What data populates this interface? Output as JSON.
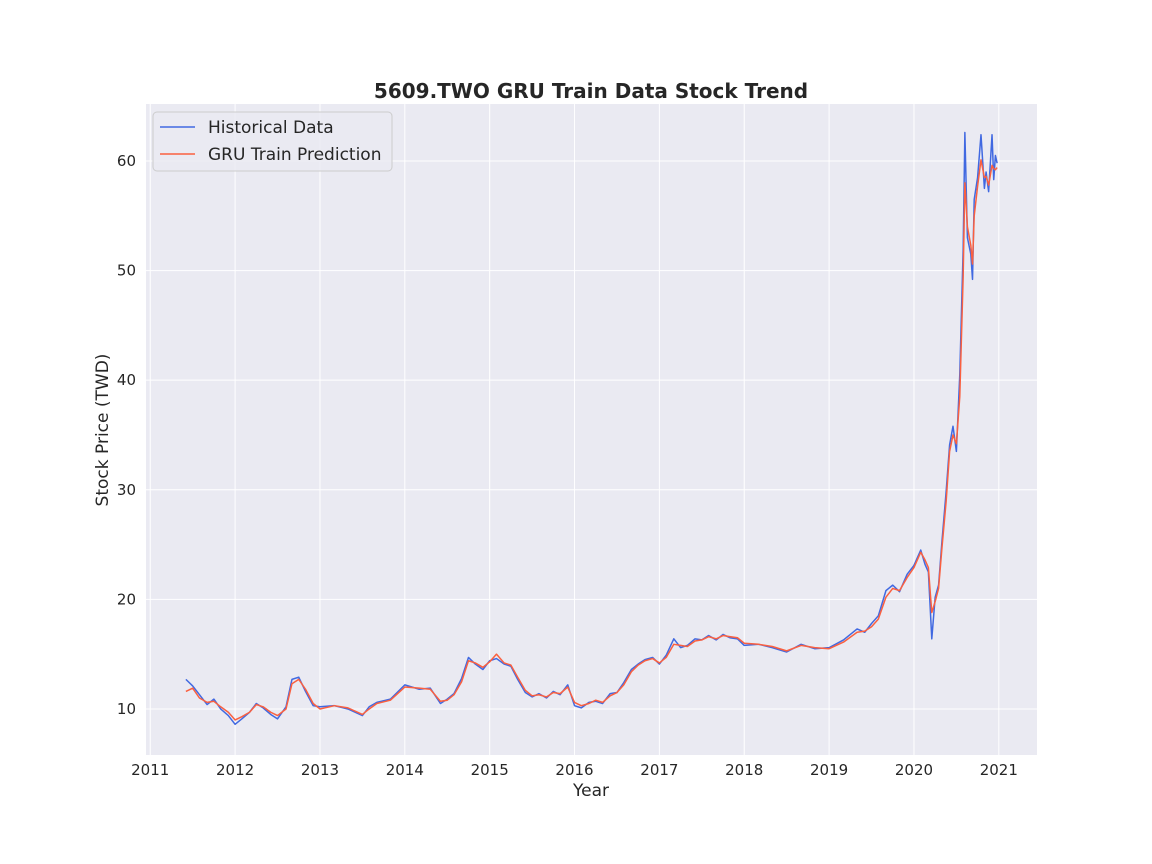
{
  "chart_data": {
    "type": "line",
    "title": "5609.TWO  GRU Train Data Stock Trend",
    "xlabel": "Year",
    "ylabel": "Stock Price (TWD)",
    "xlim": [
      2010.95,
      2021.45
    ],
    "ylim": [
      5.8,
      65.2
    ],
    "x_ticks": [
      2011,
      2012,
      2013,
      2014,
      2015,
      2016,
      2017,
      2018,
      2019,
      2020,
      2021
    ],
    "x_tick_labels": [
      "2011",
      "2012",
      "2013",
      "2014",
      "2015",
      "2016",
      "2017",
      "2018",
      "2019",
      "2020",
      "2021"
    ],
    "y_ticks": [
      10,
      20,
      30,
      40,
      50,
      60
    ],
    "y_tick_labels": [
      "10",
      "20",
      "30",
      "40",
      "50",
      "60"
    ],
    "grid": true,
    "legend_position": "top-left",
    "series": [
      {
        "name": "Historical Data",
        "color": "#4169e1",
        "x": [
          2011.42,
          2011.5,
          2011.58,
          2011.67,
          2011.75,
          2011.83,
          2011.92,
          2012.0,
          2012.08,
          2012.17,
          2012.25,
          2012.33,
          2012.42,
          2012.5,
          2012.6,
          2012.67,
          2012.75,
          2012.83,
          2012.92,
          2013.0,
          2013.17,
          2013.33,
          2013.5,
          2013.58,
          2013.67,
          2013.83,
          2014.0,
          2014.17,
          2014.3,
          2014.42,
          2014.5,
          2014.58,
          2014.67,
          2014.75,
          2014.83,
          2014.92,
          2015.0,
          2015.08,
          2015.17,
          2015.25,
          2015.33,
          2015.42,
          2015.5,
          2015.58,
          2015.67,
          2015.75,
          2015.83,
          2015.92,
          2016.0,
          2016.08,
          2016.17,
          2016.25,
          2016.33,
          2016.42,
          2016.5,
          2016.58,
          2016.67,
          2016.75,
          2016.83,
          2016.92,
          2017.0,
          2017.08,
          2017.17,
          2017.25,
          2017.33,
          2017.42,
          2017.5,
          2017.58,
          2017.67,
          2017.75,
          2017.83,
          2017.92,
          2018.0,
          2018.17,
          2018.33,
          2018.5,
          2018.67,
          2018.83,
          2019.0,
          2019.17,
          2019.33,
          2019.42,
          2019.5,
          2019.58,
          2019.67,
          2019.75,
          2019.83,
          2019.92,
          2020.0,
          2020.08,
          2020.13,
          2020.17,
          2020.21,
          2020.25,
          2020.29,
          2020.33,
          2020.38,
          2020.42,
          2020.46,
          2020.5,
          2020.54,
          2020.58,
          2020.6,
          2020.63,
          2020.67,
          2020.69,
          2020.71,
          2020.75,
          2020.79,
          2020.83,
          2020.85,
          2020.88,
          2020.92,
          2020.94,
          2020.96,
          2020.98
        ],
        "y": [
          12.7,
          12.1,
          11.3,
          10.4,
          10.9,
          10.0,
          9.4,
          8.6,
          9.1,
          9.7,
          10.5,
          10.1,
          9.5,
          9.1,
          10.2,
          12.7,
          12.9,
          11.6,
          10.3,
          10.2,
          10.3,
          10.0,
          9.4,
          10.2,
          10.6,
          10.9,
          12.2,
          11.8,
          11.9,
          10.5,
          10.9,
          11.4,
          12.8,
          14.7,
          14.1,
          13.6,
          14.4,
          14.6,
          14.1,
          13.9,
          12.7,
          11.5,
          11.1,
          11.4,
          11.0,
          11.6,
          11.3,
          12.2,
          10.3,
          10.1,
          10.6,
          10.7,
          10.5,
          11.4,
          11.5,
          12.4,
          13.6,
          14.1,
          14.5,
          14.7,
          14.1,
          14.9,
          16.4,
          15.6,
          15.8,
          16.4,
          16.3,
          16.7,
          16.3,
          16.8,
          16.5,
          16.4,
          15.8,
          15.9,
          15.6,
          15.2,
          15.9,
          15.5,
          15.6,
          16.3,
          17.3,
          17.0,
          17.8,
          18.5,
          20.8,
          21.3,
          20.7,
          22.3,
          23.1,
          24.5,
          23.2,
          22.5,
          16.4,
          20.2,
          21.3,
          25.3,
          29.9,
          34.1,
          35.8,
          33.5,
          40.5,
          52.0,
          62.6,
          53.0,
          51.5,
          49.2,
          56.5,
          58.5,
          62.4,
          57.5,
          59.0,
          57.2,
          62.4,
          58.3,
          60.5,
          59.8
        ]
      },
      {
        "name": "GRU Train Prediction",
        "color": "#fa6040",
        "x": [
          2011.42,
          2011.5,
          2011.58,
          2011.67,
          2011.75,
          2011.83,
          2011.92,
          2012.0,
          2012.08,
          2012.17,
          2012.25,
          2012.33,
          2012.42,
          2012.5,
          2012.6,
          2012.67,
          2012.75,
          2012.83,
          2012.92,
          2013.0,
          2013.17,
          2013.33,
          2013.5,
          2013.58,
          2013.67,
          2013.83,
          2014.0,
          2014.17,
          2014.3,
          2014.42,
          2014.5,
          2014.58,
          2014.67,
          2014.75,
          2014.83,
          2014.92,
          2015.0,
          2015.08,
          2015.17,
          2015.25,
          2015.33,
          2015.42,
          2015.5,
          2015.58,
          2015.67,
          2015.75,
          2015.83,
          2015.92,
          2016.0,
          2016.08,
          2016.17,
          2016.25,
          2016.33,
          2016.42,
          2016.5,
          2016.58,
          2016.67,
          2016.75,
          2016.83,
          2016.92,
          2017.0,
          2017.08,
          2017.17,
          2017.25,
          2017.33,
          2017.42,
          2017.5,
          2017.58,
          2017.67,
          2017.75,
          2017.83,
          2017.92,
          2018.0,
          2018.17,
          2018.33,
          2018.5,
          2018.67,
          2018.83,
          2019.0,
          2019.17,
          2019.33,
          2019.42,
          2019.5,
          2019.58,
          2019.67,
          2019.75,
          2019.83,
          2019.92,
          2020.0,
          2020.08,
          2020.13,
          2020.17,
          2020.21,
          2020.25,
          2020.29,
          2020.33,
          2020.38,
          2020.42,
          2020.46,
          2020.5,
          2020.54,
          2020.58,
          2020.6,
          2020.63,
          2020.67,
          2020.69,
          2020.71,
          2020.75,
          2020.79,
          2020.83,
          2020.85,
          2020.88,
          2020.92,
          2020.94,
          2020.96,
          2020.98
        ],
        "y": [
          11.6,
          11.9,
          11.0,
          10.6,
          10.7,
          10.2,
          9.7,
          9.0,
          9.3,
          9.7,
          10.4,
          10.2,
          9.7,
          9.4,
          10.0,
          12.3,
          12.7,
          11.8,
          10.5,
          10.0,
          10.3,
          10.1,
          9.5,
          10.0,
          10.5,
          10.8,
          12.0,
          11.9,
          11.8,
          10.7,
          10.8,
          11.3,
          12.5,
          14.4,
          14.2,
          13.8,
          14.3,
          15.0,
          14.2,
          14.0,
          12.9,
          11.7,
          11.2,
          11.3,
          11.1,
          11.5,
          11.4,
          12.0,
          10.6,
          10.3,
          10.5,
          10.8,
          10.6,
          11.2,
          11.5,
          12.2,
          13.4,
          14.0,
          14.4,
          14.6,
          14.2,
          14.7,
          15.9,
          15.8,
          15.7,
          16.2,
          16.3,
          16.6,
          16.4,
          16.7,
          16.6,
          16.5,
          16.0,
          15.9,
          15.7,
          15.3,
          15.8,
          15.6,
          15.5,
          16.1,
          17.0,
          17.1,
          17.5,
          18.2,
          20.2,
          21.0,
          20.8,
          22.0,
          22.9,
          24.3,
          23.6,
          22.9,
          18.8,
          19.8,
          21.0,
          24.7,
          29.0,
          33.5,
          35.0,
          34.2,
          38.5,
          49.5,
          58.0,
          54.0,
          52.3,
          50.6,
          55.0,
          57.7,
          60.1,
          58.5,
          58.6,
          57.8,
          59.6,
          59.3,
          59.2,
          59.4
        ]
      }
    ]
  }
}
